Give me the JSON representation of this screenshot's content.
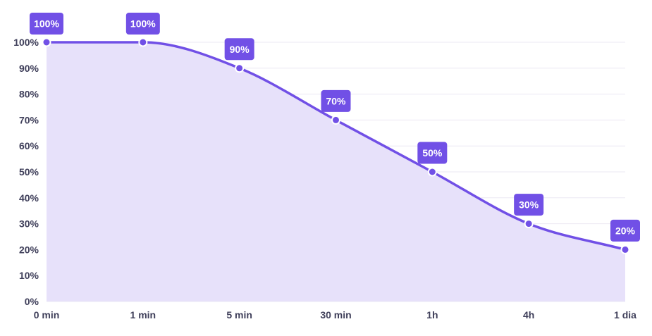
{
  "chart_data": {
    "type": "area",
    "categories": [
      "0 min",
      "1 min",
      "5 min",
      "30 min",
      "1h",
      "4h",
      "1 dia"
    ],
    "series": [
      {
        "values": [
          100,
          100,
          90,
          70,
          50,
          30,
          20
        ]
      }
    ],
    "data_labels": [
      "100%",
      "100%",
      "90%",
      "70%",
      "50%",
      "30%",
      "20%"
    ],
    "y_ticks": [
      "0%",
      "10%",
      "20%",
      "30%",
      "40%",
      "50%",
      "60%",
      "70%",
      "80%",
      "90%",
      "100%"
    ],
    "y_tick_values": [
      0,
      10,
      20,
      30,
      40,
      50,
      60,
      70,
      80,
      90,
      100
    ],
    "ylim": [
      0,
      100
    ],
    "grid": true,
    "legend": "none",
    "colors": {
      "line": "#7150e6",
      "fill": "#e7e1fa",
      "label_bg": "#7150e6",
      "grid": "#ebe8f3",
      "tick_text": "#3f3f5a"
    }
  }
}
